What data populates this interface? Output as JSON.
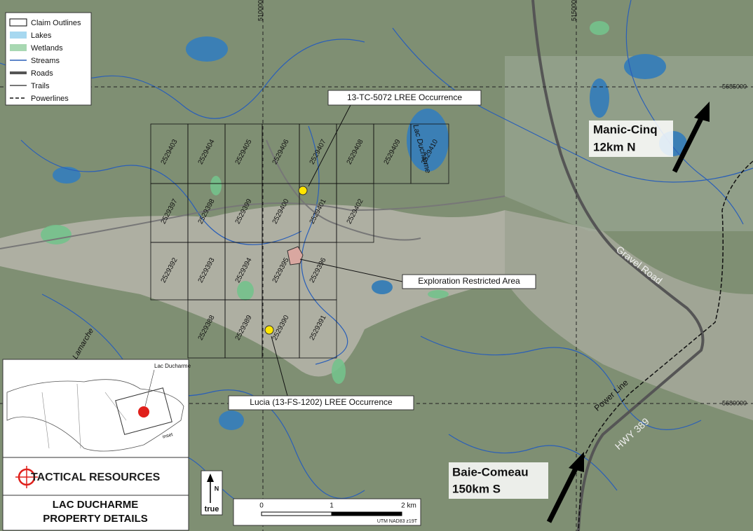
{
  "legend": [
    "Claim Outlines",
    "Lakes",
    "Wetlands",
    "Streams",
    "Roads",
    "Trails",
    "Powerlines"
  ],
  "grid_labels": {
    "northing": [
      "5685000",
      "5680000"
    ],
    "easting": [
      "510000",
      "515000"
    ]
  },
  "claims": [
    [
      "2529403",
      "2529404",
      "2529405",
      "2529406",
      "2529407",
      "2529408",
      "2529409",
      "2529410"
    ],
    [
      "2529397",
      "2529398",
      "2529399",
      "2529400",
      "2529401",
      "2529402"
    ],
    [
      "2529392",
      "2529393",
      "2529394",
      "2529395",
      "2529396"
    ],
    [
      "2529388",
      "2529389",
      "2529390",
      "2529391"
    ]
  ],
  "callouts": [
    "13-TC-5072 LREE Occurrence",
    "Exploration Restricted Area",
    "Lucia (13-FS-1202) LREE Occurrence"
  ],
  "map_labels": {
    "lake": "Lac Ducharme",
    "river": "e Lamarche",
    "gravel_road": "Gravel Road",
    "power_line": "Power Line",
    "highway": "HWY 389"
  },
  "directions": [
    {
      "place": "Manic-Cinq",
      "distance": "12km N"
    },
    {
      "place": "Baie-Comeau",
      "distance": "150km S"
    }
  ],
  "inset": {
    "label": "Lac Ducharme",
    "box_label": "inset"
  },
  "logo": "TACTICAL RESOURCES",
  "title": [
    "LAC DUCHARME",
    "PROPERTY DETAILS"
  ],
  "north_arrow": {
    "n": "N",
    "label": "true"
  },
  "scale_bar": {
    "ticks": [
      "0",
      "1",
      "2 km"
    ],
    "projection": "UTM NAD83 z19T"
  }
}
